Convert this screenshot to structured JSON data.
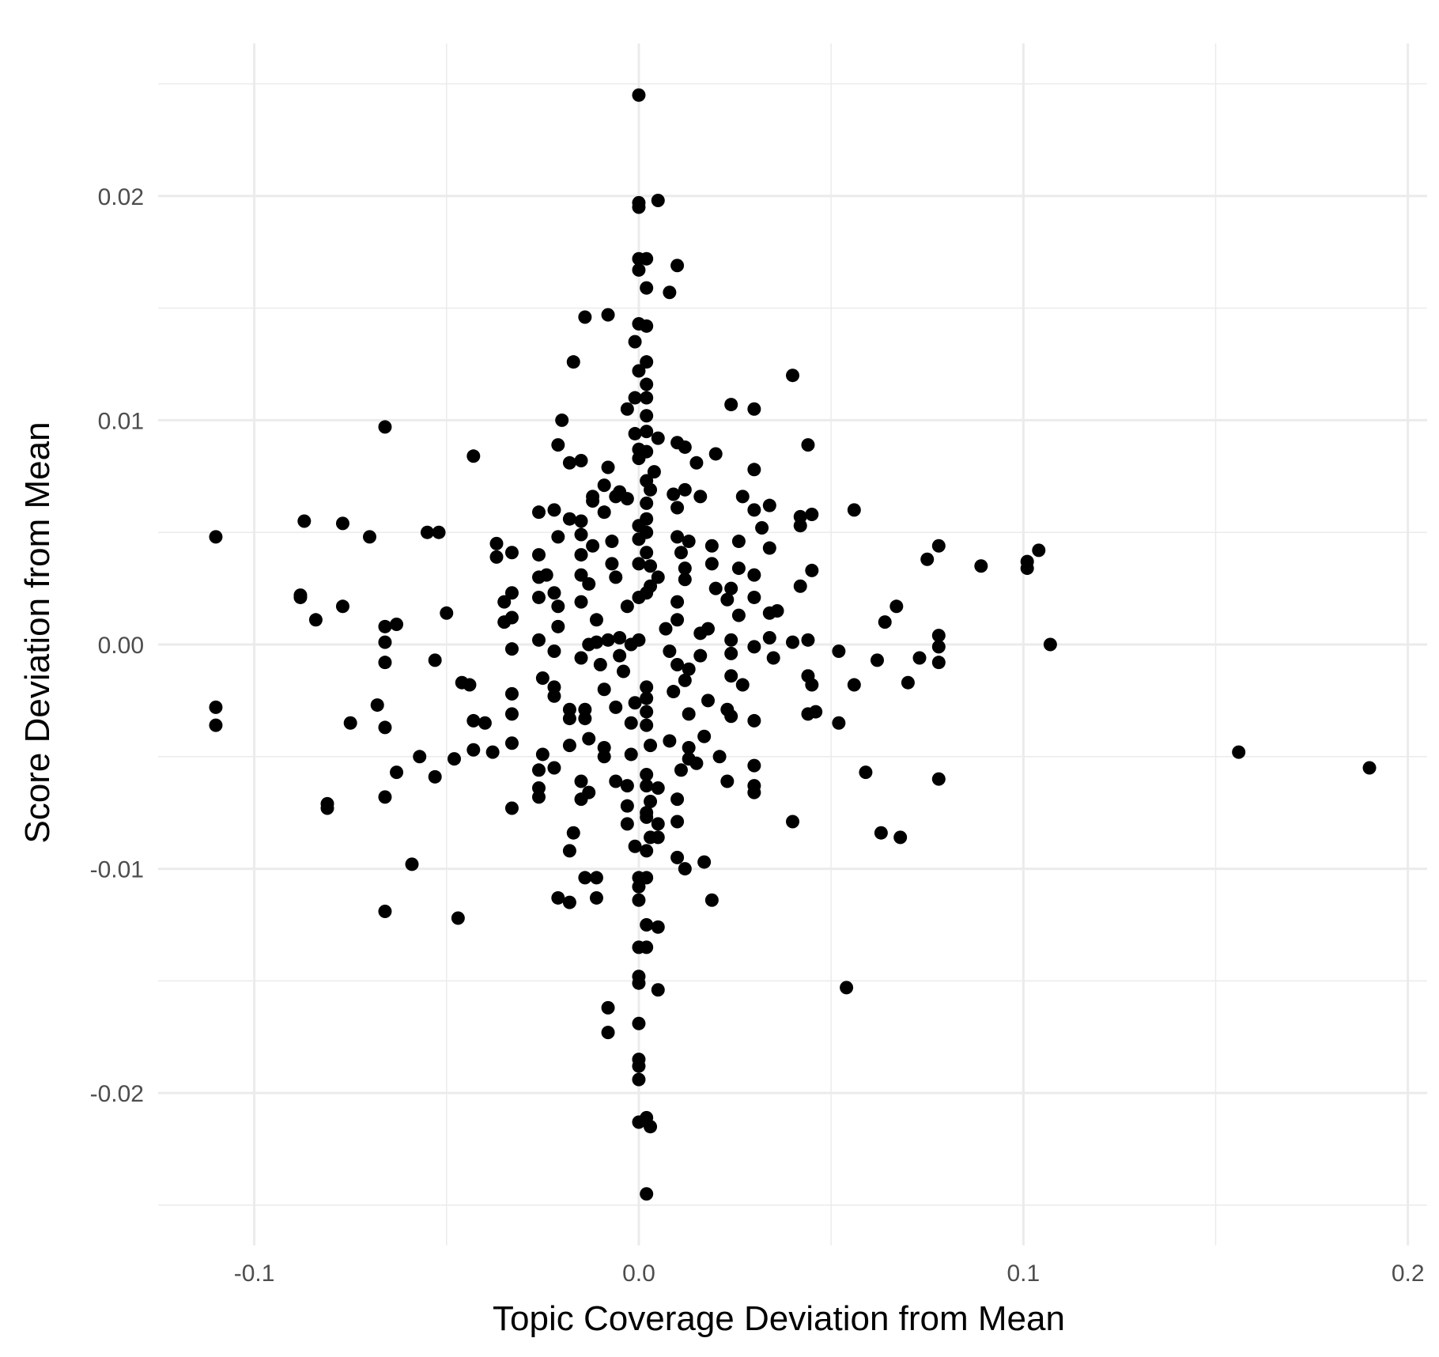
{
  "chart_data": {
    "type": "scatter",
    "xlabel": "Topic Coverage Deviation from Mean",
    "ylabel": "Score Deviation from Mean",
    "xlim": [
      -0.125,
      0.205
    ],
    "ylim": [
      -0.0268,
      0.0268
    ],
    "x_ticks": [
      -0.1,
      0.0,
      0.1,
      0.2
    ],
    "x_tick_labels": [
      "-0.1",
      "0.0",
      "0.1",
      "0.2"
    ],
    "y_ticks": [
      -0.02,
      -0.01,
      0.0,
      0.01,
      0.02
    ],
    "y_tick_labels": [
      "-0.02",
      "-0.01",
      "0.00",
      "0.01",
      "0.02"
    ],
    "grid": true,
    "point_color": "#000000",
    "points": [
      [
        0.0,
        0.0245
      ],
      [
        0.0,
        0.0197
      ],
      [
        0.0,
        0.0195
      ],
      [
        0.005,
        0.0198
      ],
      [
        0.0,
        0.0172
      ],
      [
        0.002,
        0.0172
      ],
      [
        0.0,
        0.0167
      ],
      [
        0.01,
        0.0169
      ],
      [
        0.002,
        0.0159
      ],
      [
        0.008,
        0.0157
      ],
      [
        -0.014,
        0.0146
      ],
      [
        -0.008,
        0.0147
      ],
      [
        0.0,
        0.0143
      ],
      [
        0.002,
        0.0142
      ],
      [
        -0.001,
        0.0135
      ],
      [
        -0.017,
        0.0126
      ],
      [
        0.002,
        0.0126
      ],
      [
        0.0,
        0.0122
      ],
      [
        0.04,
        0.012
      ],
      [
        0.002,
        0.0116
      ],
      [
        0.002,
        0.011
      ],
      [
        -0.001,
        0.011
      ],
      [
        0.024,
        0.0107
      ],
      [
        0.03,
        0.0105
      ],
      [
        -0.003,
        0.0105
      ],
      [
        0.002,
        0.0102
      ],
      [
        -0.02,
        0.01
      ],
      [
        -0.066,
        0.0097
      ],
      [
        0.002,
        0.0095
      ],
      [
        -0.001,
        0.0094
      ],
      [
        0.005,
        0.0092
      ],
      [
        0.01,
        0.009
      ],
      [
        -0.021,
        0.0089
      ],
      [
        0.044,
        0.0089
      ],
      [
        0.012,
        0.0088
      ],
      [
        0.0,
        0.0087
      ],
      [
        0.002,
        0.0086
      ],
      [
        0.02,
        0.0085
      ],
      [
        -0.043,
        0.0084
      ],
      [
        0.0,
        0.0083
      ],
      [
        -0.015,
        0.0082
      ],
      [
        -0.018,
        0.0081
      ],
      [
        0.015,
        0.0081
      ],
      [
        -0.008,
        0.0079
      ],
      [
        0.03,
        0.0078
      ],
      [
        0.004,
        0.0077
      ],
      [
        0.002,
        0.0073
      ],
      [
        -0.009,
        0.0071
      ],
      [
        0.003,
        0.0069
      ],
      [
        0.012,
        0.0069
      ],
      [
        -0.005,
        0.0068
      ],
      [
        0.009,
        0.0067
      ],
      [
        -0.012,
        0.0066
      ],
      [
        -0.006,
        0.0066
      ],
      [
        -0.003,
        0.0065
      ],
      [
        0.016,
        0.0066
      ],
      [
        0.027,
        0.0066
      ],
      [
        0.002,
        0.0063
      ],
      [
        -0.012,
        0.0064
      ],
      [
        0.01,
        0.0061
      ],
      [
        0.034,
        0.0062
      ],
      [
        0.03,
        0.006
      ],
      [
        -0.009,
        0.0059
      ],
      [
        0.056,
        0.006
      ],
      [
        -0.026,
        0.0059
      ],
      [
        -0.022,
        0.006
      ],
      [
        0.045,
        0.0058
      ],
      [
        0.042,
        0.0057
      ],
      [
        -0.018,
        0.0056
      ],
      [
        -0.015,
        0.0055
      ],
      [
        0.002,
        0.0056
      ],
      [
        -0.087,
        0.0055
      ],
      [
        -0.077,
        0.0054
      ],
      [
        0.042,
        0.0053
      ],
      [
        0.0,
        0.0053
      ],
      [
        0.032,
        0.0052
      ],
      [
        -0.015,
        0.0049
      ],
      [
        -0.055,
        0.005
      ],
      [
        -0.052,
        0.005
      ],
      [
        0.002,
        0.005
      ],
      [
        -0.11,
        0.0048
      ],
      [
        -0.07,
        0.0048
      ],
      [
        0.01,
        0.0048
      ],
      [
        -0.021,
        0.0048
      ],
      [
        0.0,
        0.0047
      ],
      [
        0.013,
        0.0046
      ],
      [
        0.026,
        0.0046
      ],
      [
        -0.037,
        0.0045
      ],
      [
        -0.012,
        0.0044
      ],
      [
        -0.007,
        0.0046
      ],
      [
        0.019,
        0.0044
      ],
      [
        0.078,
        0.0044
      ],
      [
        0.034,
        0.0043
      ],
      [
        0.011,
        0.0041
      ],
      [
        0.104,
        0.0042
      ],
      [
        -0.033,
        0.0041
      ],
      [
        0.002,
        0.0041
      ],
      [
        -0.037,
        0.0039
      ],
      [
        -0.015,
        0.004
      ],
      [
        -0.026,
        0.004
      ],
      [
        0.075,
        0.0038
      ],
      [
        0.019,
        0.0036
      ],
      [
        0.101,
        0.0037
      ],
      [
        0.0,
        0.0036
      ],
      [
        0.089,
        0.0035
      ],
      [
        -0.007,
        0.0036
      ],
      [
        0.003,
        0.0035
      ],
      [
        0.101,
        0.0034
      ],
      [
        0.012,
        0.0034
      ],
      [
        0.026,
        0.0034
      ],
      [
        0.045,
        0.0033
      ],
      [
        -0.015,
        0.0031
      ],
      [
        0.03,
        0.0031
      ],
      [
        -0.024,
        0.0031
      ],
      [
        -0.026,
        0.003
      ],
      [
        -0.006,
        0.003
      ],
      [
        0.005,
        0.003
      ],
      [
        0.012,
        0.0029
      ],
      [
        -0.013,
        0.0027
      ],
      [
        0.003,
        0.0026
      ],
      [
        0.042,
        0.0026
      ],
      [
        0.02,
        0.0025
      ],
      [
        0.024,
        0.0025
      ],
      [
        -0.033,
        0.0023
      ],
      [
        -0.022,
        0.0023
      ],
      [
        0.002,
        0.0023
      ],
      [
        -0.088,
        0.0022
      ],
      [
        -0.088,
        0.0021
      ],
      [
        0.03,
        0.0021
      ],
      [
        -0.026,
        0.0021
      ],
      [
        0.0,
        0.0021
      ],
      [
        0.023,
        0.002
      ],
      [
        -0.015,
        0.0019
      ],
      [
        -0.035,
        0.0019
      ],
      [
        0.01,
        0.0019
      ],
      [
        -0.077,
        0.0017
      ],
      [
        0.067,
        0.0017
      ],
      [
        -0.021,
        0.0017
      ],
      [
        -0.003,
        0.0017
      ],
      [
        0.036,
        0.0015
      ],
      [
        0.034,
        0.0014
      ],
      [
        -0.05,
        0.0014
      ],
      [
        0.026,
        0.0013
      ],
      [
        -0.033,
        0.0012
      ],
      [
        -0.084,
        0.0011
      ],
      [
        0.01,
        0.0011
      ],
      [
        -0.011,
        0.0011
      ],
      [
        -0.035,
        0.001
      ],
      [
        0.064,
        0.001
      ],
      [
        -0.063,
        0.0009
      ],
      [
        -0.066,
        0.0008
      ],
      [
        -0.021,
        0.0008
      ],
      [
        0.018,
        0.0007
      ],
      [
        0.007,
        0.0007
      ],
      [
        0.078,
        0.0004
      ],
      [
        -0.005,
        0.0003
      ],
      [
        0.016,
        0.0005
      ],
      [
        0.034,
        0.0003
      ],
      [
        -0.026,
        0.0002
      ],
      [
        0.0,
        0.0002
      ],
      [
        -0.008,
        0.0002
      ],
      [
        -0.011,
        0.0001
      ],
      [
        0.024,
        0.0002
      ],
      [
        -0.066,
        0.0001
      ],
      [
        0.04,
        0.0001
      ],
      [
        0.044,
        0.0002
      ],
      [
        0.107,
        0.0
      ],
      [
        -0.002,
        0.0
      ],
      [
        -0.013,
        0.0
      ],
      [
        -0.033,
        -0.0002
      ],
      [
        0.078,
        -0.0001
      ],
      [
        0.03,
        -0.0001
      ],
      [
        0.052,
        -0.0003
      ],
      [
        -0.022,
        -0.0003
      ],
      [
        0.008,
        -0.0003
      ],
      [
        0.016,
        -0.0005
      ],
      [
        -0.005,
        -0.0005
      ],
      [
        0.024,
        -0.0004
      ],
      [
        -0.015,
        -0.0006
      ],
      [
        0.073,
        -0.0006
      ],
      [
        0.035,
        -0.0006
      ],
      [
        -0.053,
        -0.0007
      ],
      [
        0.062,
        -0.0007
      ],
      [
        -0.066,
        -0.0008
      ],
      [
        0.078,
        -0.0008
      ],
      [
        0.01,
        -0.0009
      ],
      [
        -0.01,
        -0.0009
      ],
      [
        0.013,
        -0.0011
      ],
      [
        -0.004,
        -0.0012
      ],
      [
        0.044,
        -0.0014
      ],
      [
        0.024,
        -0.0014
      ],
      [
        -0.025,
        -0.0015
      ],
      [
        0.012,
        -0.0016
      ],
      [
        0.07,
        -0.0017
      ],
      [
        -0.046,
        -0.0017
      ],
      [
        0.045,
        -0.0018
      ],
      [
        -0.044,
        -0.0018
      ],
      [
        0.027,
        -0.0018
      ],
      [
        0.056,
        -0.0018
      ],
      [
        0.002,
        -0.0019
      ],
      [
        -0.022,
        -0.0019
      ],
      [
        -0.009,
        -0.002
      ],
      [
        0.009,
        -0.0021
      ],
      [
        -0.033,
        -0.0022
      ],
      [
        -0.022,
        -0.0023
      ],
      [
        0.002,
        -0.0024
      ],
      [
        0.018,
        -0.0025
      ],
      [
        -0.001,
        -0.0026
      ],
      [
        -0.068,
        -0.0027
      ],
      [
        -0.006,
        -0.0028
      ],
      [
        -0.11,
        -0.0028
      ],
      [
        -0.018,
        -0.0029
      ],
      [
        -0.014,
        -0.0029
      ],
      [
        0.023,
        -0.0029
      ],
      [
        0.002,
        -0.003
      ],
      [
        0.013,
        -0.0031
      ],
      [
        0.044,
        -0.0031
      ],
      [
        0.046,
        -0.003
      ],
      [
        0.024,
        -0.0032
      ],
      [
        -0.033,
        -0.0031
      ],
      [
        -0.018,
        -0.0033
      ],
      [
        -0.014,
        -0.0033
      ],
      [
        -0.043,
        -0.0034
      ],
      [
        0.03,
        -0.0034
      ],
      [
        -0.04,
        -0.0035
      ],
      [
        -0.002,
        -0.0035
      ],
      [
        -0.11,
        -0.0036
      ],
      [
        -0.075,
        -0.0035
      ],
      [
        0.052,
        -0.0035
      ],
      [
        -0.066,
        -0.0037
      ],
      [
        0.002,
        -0.0036
      ],
      [
        0.017,
        -0.0041
      ],
      [
        -0.013,
        -0.0042
      ],
      [
        0.008,
        -0.0043
      ],
      [
        -0.033,
        -0.0044
      ],
      [
        -0.018,
        -0.0045
      ],
      [
        0.003,
        -0.0045
      ],
      [
        -0.043,
        -0.0047
      ],
      [
        -0.009,
        -0.0046
      ],
      [
        0.013,
        -0.0046
      ],
      [
        0.156,
        -0.0048
      ],
      [
        -0.038,
        -0.0048
      ],
      [
        -0.025,
        -0.0049
      ],
      [
        -0.002,
        -0.0049
      ],
      [
        -0.009,
        -0.005
      ],
      [
        0.021,
        -0.005
      ],
      [
        -0.057,
        -0.005
      ],
      [
        -0.048,
        -0.0051
      ],
      [
        0.013,
        -0.0051
      ],
      [
        0.015,
        -0.0053
      ],
      [
        0.19,
        -0.0055
      ],
      [
        0.03,
        -0.0054
      ],
      [
        -0.022,
        -0.0055
      ],
      [
        -0.026,
        -0.0056
      ],
      [
        0.011,
        -0.0056
      ],
      [
        -0.063,
        -0.0057
      ],
      [
        0.059,
        -0.0057
      ],
      [
        0.078,
        -0.006
      ],
      [
        -0.053,
        -0.0059
      ],
      [
        0.002,
        -0.0058
      ],
      [
        -0.015,
        -0.0061
      ],
      [
        -0.006,
        -0.0061
      ],
      [
        0.023,
        -0.0061
      ],
      [
        -0.003,
        -0.0063
      ],
      [
        0.002,
        -0.0063
      ],
      [
        0.005,
        -0.0064
      ],
      [
        0.03,
        -0.0063
      ],
      [
        -0.026,
        -0.0064
      ],
      [
        0.03,
        -0.0066
      ],
      [
        -0.013,
        -0.0066
      ],
      [
        -0.026,
        -0.0068
      ],
      [
        -0.066,
        -0.0068
      ],
      [
        -0.015,
        -0.0069
      ],
      [
        0.01,
        -0.0069
      ],
      [
        0.003,
        -0.007
      ],
      [
        -0.081,
        -0.0071
      ],
      [
        -0.081,
        -0.0073
      ],
      [
        -0.003,
        -0.0072
      ],
      [
        -0.033,
        -0.0073
      ],
      [
        0.002,
        -0.0075
      ],
      [
        0.002,
        -0.0077
      ],
      [
        0.01,
        -0.0079
      ],
      [
        -0.003,
        -0.008
      ],
      [
        0.005,
        -0.008
      ],
      [
        0.04,
        -0.0079
      ],
      [
        -0.017,
        -0.0084
      ],
      [
        0.063,
        -0.0084
      ],
      [
        0.068,
        -0.0086
      ],
      [
        0.003,
        -0.0086
      ],
      [
        0.005,
        -0.0086
      ],
      [
        -0.001,
        -0.009
      ],
      [
        0.002,
        -0.0092
      ],
      [
        -0.018,
        -0.0092
      ],
      [
        0.01,
        -0.0095
      ],
      [
        0.017,
        -0.0097
      ],
      [
        -0.059,
        -0.0098
      ],
      [
        0.012,
        -0.01
      ],
      [
        -0.014,
        -0.0104
      ],
      [
        -0.011,
        -0.0104
      ],
      [
        0.0,
        -0.0104
      ],
      [
        0.002,
        -0.0104
      ],
      [
        0.0,
        -0.0108
      ],
      [
        -0.021,
        -0.0113
      ],
      [
        -0.011,
        -0.0113
      ],
      [
        -0.018,
        -0.0115
      ],
      [
        0.019,
        -0.0114
      ],
      [
        0.0,
        -0.0114
      ],
      [
        -0.066,
        -0.0119
      ],
      [
        -0.047,
        -0.0122
      ],
      [
        0.002,
        -0.0125
      ],
      [
        0.005,
        -0.0126
      ],
      [
        0.0,
        -0.0135
      ],
      [
        0.002,
        -0.0135
      ],
      [
        0.0,
        -0.0148
      ],
      [
        0.0,
        -0.0151
      ],
      [
        0.005,
        -0.0154
      ],
      [
        0.054,
        -0.0153
      ],
      [
        -0.008,
        -0.0162
      ],
      [
        -0.008,
        -0.0173
      ],
      [
        0.0,
        -0.0169
      ],
      [
        0.0,
        -0.0185
      ],
      [
        0.0,
        -0.0188
      ],
      [
        0.0,
        -0.0194
      ],
      [
        0.002,
        -0.0211
      ],
      [
        0.0,
        -0.0213
      ],
      [
        0.003,
        -0.0215
      ],
      [
        0.002,
        -0.0245
      ]
    ]
  }
}
